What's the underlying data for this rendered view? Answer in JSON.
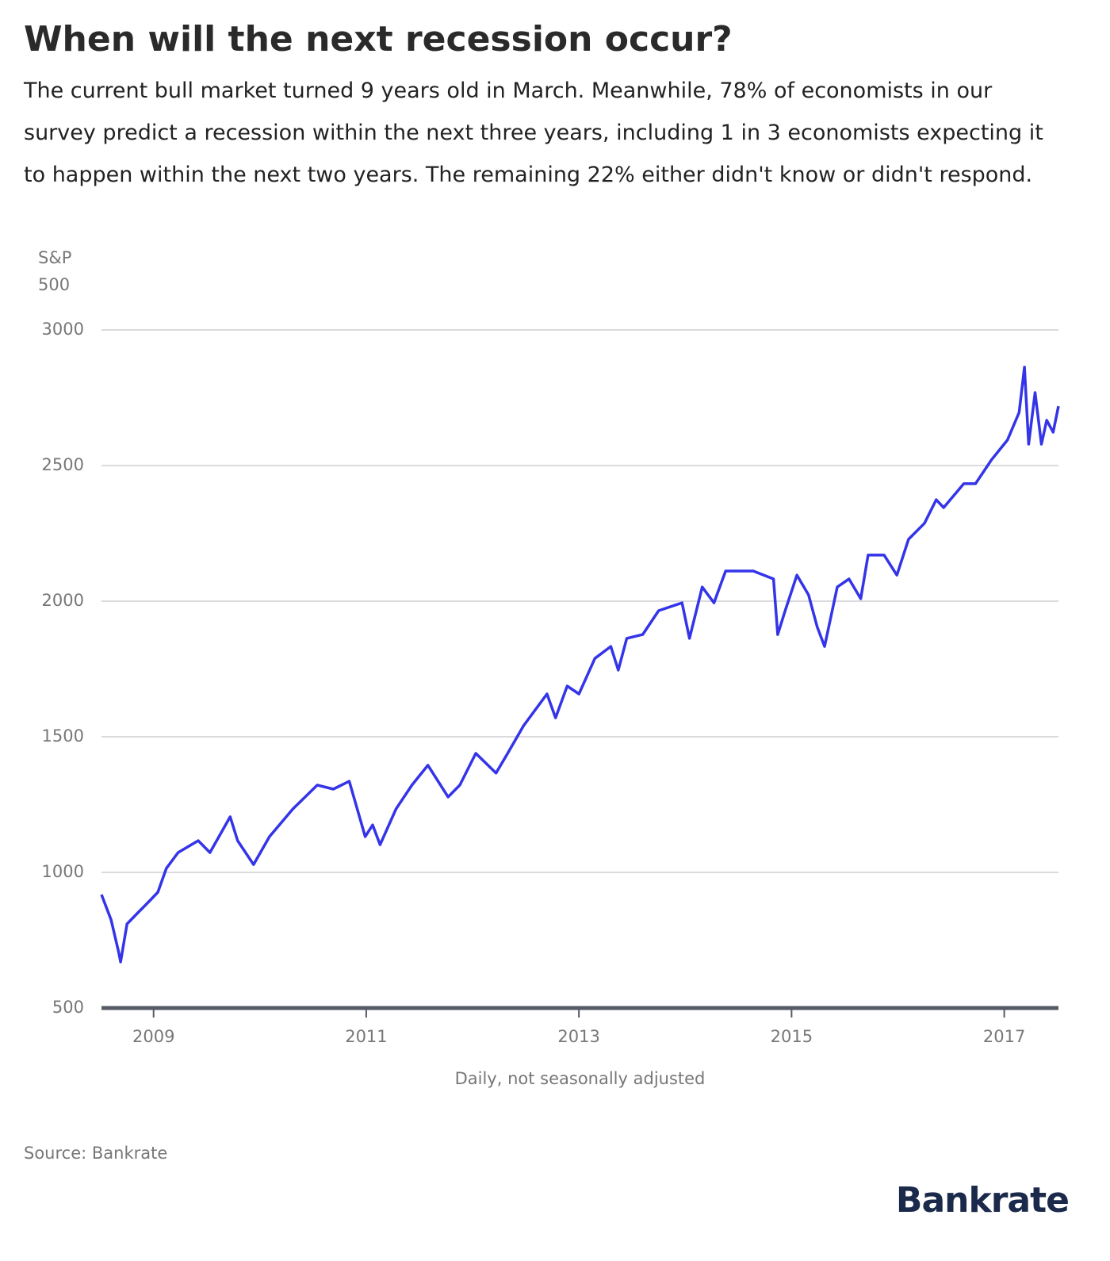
{
  "chart_data": {
    "type": "line",
    "title": "When will the next recession occur?",
    "subtitle": "The current bull market turned 9 years old in March. Meanwhile, 78% of economists in our survey predict a recession within the next three years, including 1 in 3 economists expecting it to happen within the next two years. The remaining 22% either didn't know or didn't respond.",
    "y_label": "S&P 500",
    "x_label": "Daily, not seasonally adjusted",
    "source": "Source: Bankrate",
    "logo": "Bankrate",
    "color": "#3434e8",
    "grid": true,
    "xlim": [
      2008.51,
      2017.51
    ],
    "ylim": [
      500,
      3000
    ],
    "xticks": [
      2009,
      2011,
      2013,
      2015,
      2017
    ],
    "yticks": [
      500,
      1000,
      1500,
      2000,
      2500,
      3000
    ],
    "x": [
      2008.51,
      2008.6,
      2008.67,
      2008.69,
      2008.75,
      2008.86,
      2008.97,
      2009.04,
      2009.12,
      2009.23,
      2009.42,
      2009.53,
      2009.72,
      2009.79,
      2009.94,
      2010.09,
      2010.31,
      2010.54,
      2010.69,
      2010.84,
      2010.99,
      2011.06,
      2011.13,
      2011.28,
      2011.43,
      2011.58,
      2011.77,
      2011.88,
      2012.03,
      2012.22,
      2012.33,
      2012.48,
      2012.7,
      2012.78,
      2012.89,
      2013.0,
      2013.15,
      2013.3,
      2013.37,
      2013.45,
      2013.6,
      2013.75,
      2013.97,
      2014.04,
      2014.16,
      2014.27,
      2014.38,
      2014.64,
      2014.83,
      2014.87,
      2014.94,
      2015.05,
      2015.16,
      2015.24,
      2015.31,
      2015.43,
      2015.54,
      2015.65,
      2015.72,
      2015.87,
      2015.99,
      2016.1,
      2016.25,
      2016.36,
      2016.43,
      2016.62,
      2016.73,
      2016.88,
      2017.03,
      2017.14,
      2017.19,
      2017.23,
      2017.29,
      2017.35,
      2017.4,
      2017.46,
      2017.51
    ],
    "values": [
      918,
      825,
      708,
      670,
      810,
      854,
      898,
      927,
      1015,
      1073,
      1117,
      1073,
      1205,
      1117,
      1029,
      1132,
      1234,
      1322,
      1307,
      1336,
      1132,
      1175,
      1102,
      1234,
      1322,
      1395,
      1278,
      1322,
      1439,
      1366,
      1439,
      1541,
      1658,
      1570,
      1687,
      1658,
      1789,
      1833,
      1746,
      1863,
      1877,
      1965,
      1994,
      1863,
      2052,
      1994,
      2111,
      2111,
      2082,
      1877,
      1965,
      2096,
      2023,
      1906,
      1833,
      2052,
      2082,
      2009,
      2170,
      2170,
      2096,
      2228,
      2287,
      2374,
      2345,
      2433,
      2433,
      2521,
      2594,
      2696,
      2863,
      2579,
      2769,
      2579,
      2667,
      2623,
      2719
    ]
  }
}
